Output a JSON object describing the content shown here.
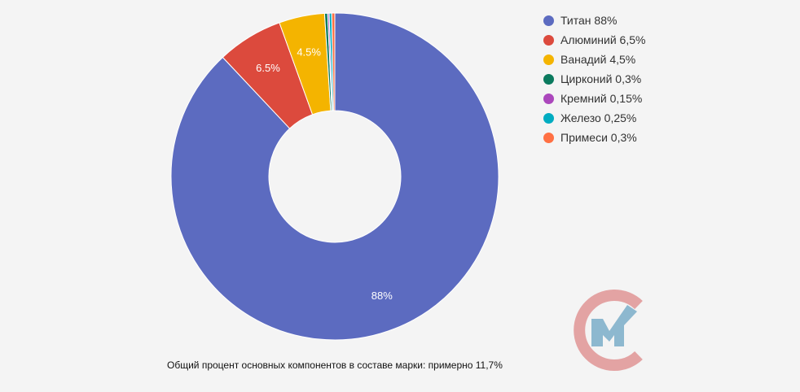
{
  "chart_data": {
    "type": "pie",
    "donut": true,
    "categories": [
      "Титан",
      "Алюминий",
      "Ванадий",
      "Цирконий",
      "Кремний",
      "Железо",
      "Примеси"
    ],
    "values": [
      88,
      6.5,
      4.5,
      0.3,
      0.15,
      0.25,
      0.3
    ],
    "colors": [
      "#5c6bc0",
      "#dc4a3d",
      "#f4b400",
      "#0b7a5e",
      "#ab47bc",
      "#00acc1",
      "#ff7043"
    ],
    "data_labels": [
      "88%",
      "6.5%",
      "4.5%",
      "",
      "",
      "",
      ""
    ],
    "legend_entries": [
      "Титан 88%",
      "Алюминий 6,5%",
      "Ванадий 4,5%",
      "Цирконий 0,3%",
      "Кремний 0,15%",
      "Железо 0,25%",
      "Примеси 0,3%"
    ],
    "legend_position": "right"
  },
  "caption": "Общий процент основных компонентов в составе марки: примерно 11,7%",
  "logo": {
    "icon": "cm-logo-icon",
    "colors": {
      "ring": "#e3a3a3",
      "mark": "#8db8cf"
    }
  }
}
